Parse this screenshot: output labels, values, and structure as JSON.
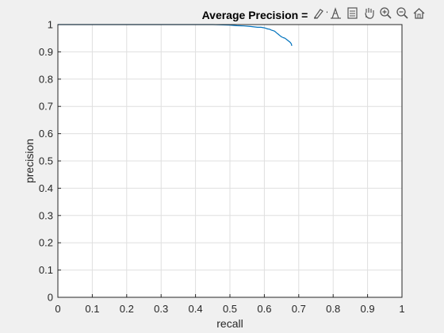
{
  "chart_data": {
    "type": "line",
    "title": "Average Precision = 0.67",
    "xlabel": "recall",
    "ylabel": "precision",
    "xlim": [
      0,
      1
    ],
    "ylim": [
      0,
      1
    ],
    "grid": true,
    "x_ticks": [
      "0",
      "0.1",
      "0.2",
      "0.3",
      "0.4",
      "0.5",
      "0.6",
      "0.7",
      "0.8",
      "0.9",
      "1"
    ],
    "y_ticks": [
      "0",
      "0.1",
      "0.2",
      "0.3",
      "0.4",
      "0.5",
      "0.6",
      "0.7",
      "0.8",
      "0.9",
      "1"
    ],
    "series": [
      {
        "color": "#0072bd",
        "x": [
          0,
          0.05,
          0.1,
          0.2,
          0.3,
          0.4,
          0.45,
          0.5,
          0.52,
          0.54,
          0.56,
          0.58,
          0.59,
          0.6,
          0.605,
          0.61,
          0.615,
          0.62,
          0.625,
          0.63,
          0.635,
          0.64,
          0.645,
          0.65,
          0.655,
          0.66,
          0.665,
          0.67,
          0.675,
          0.678,
          0.68
        ],
        "y": [
          1,
          1,
          1,
          1,
          1,
          1,
          1,
          0.998,
          0.996,
          0.995,
          0.993,
          0.99,
          0.99,
          0.988,
          0.986,
          0.984,
          0.983,
          0.98,
          0.978,
          0.976,
          0.97,
          0.965,
          0.96,
          0.955,
          0.952,
          0.95,
          0.945,
          0.94,
          0.935,
          0.93,
          0.922
        ]
      }
    ]
  },
  "toolbar": {
    "buttons": [
      {
        "icon": "brush-icon"
      },
      {
        "icon": "data-cursor-icon"
      },
      {
        "icon": "legend-icon"
      },
      {
        "icon": "pan-icon"
      },
      {
        "icon": "zoom-in-icon"
      },
      {
        "icon": "zoom-out-icon"
      },
      {
        "icon": "home-icon"
      }
    ]
  }
}
